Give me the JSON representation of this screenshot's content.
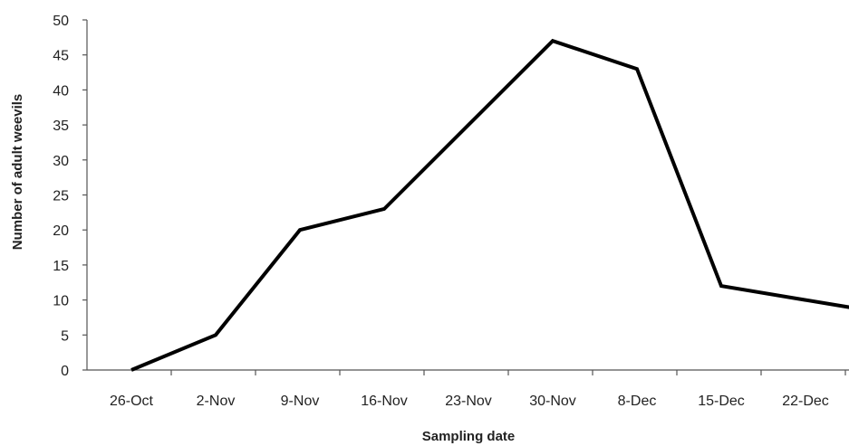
{
  "chart_data": {
    "type": "line",
    "title": "",
    "xlabel": "Sampling date",
    "ylabel": "Number of adult weevils",
    "categories": [
      "26-Oct",
      "2-Nov",
      "9-Nov",
      "16-Nov",
      "23-Nov",
      "30-Nov",
      "8-Dec",
      "15-Dec",
      "22-Dec",
      ""
    ],
    "y_ticks": [
      0,
      5,
      10,
      15,
      20,
      25,
      30,
      35,
      40,
      45,
      50
    ],
    "ylim": [
      0,
      50
    ],
    "grid": false,
    "legend": "none",
    "series": [
      {
        "color": "#000000",
        "values": [
          0,
          5,
          20,
          23,
          35,
          47,
          43,
          12,
          10,
          8
        ]
      }
    ]
  }
}
